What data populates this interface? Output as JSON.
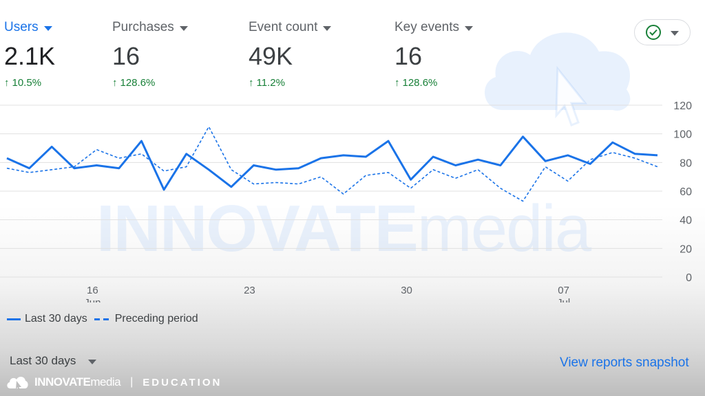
{
  "metrics": [
    {
      "label": "Users",
      "value": "2.1K",
      "change": "10.5%",
      "active": true
    },
    {
      "label": "Purchases",
      "value": "16",
      "change": "128.6%",
      "active": false
    },
    {
      "label": "Event count",
      "value": "49K",
      "change": "11.2%",
      "active": false
    },
    {
      "label": "Key events",
      "value": "16",
      "change": "128.6%",
      "active": false
    }
  ],
  "status_icon": "check-circle-icon",
  "colors": {
    "accent": "#1a73e8",
    "positive": "#188038"
  },
  "chart_data": {
    "type": "line",
    "y_ticks": [
      "120",
      "100",
      "80",
      "60",
      "40",
      "20",
      "0"
    ],
    "ylim": [
      0,
      120
    ],
    "x_ticks": [
      {
        "day": "16",
        "month": "Jun"
      },
      {
        "day": "23",
        "month": ""
      },
      {
        "day": "30",
        "month": ""
      },
      {
        "day": "07",
        "month": "Jul"
      }
    ],
    "series": [
      {
        "name": "Last 30 days",
        "style": "solid",
        "values": [
          83,
          76,
          91,
          76,
          78,
          76,
          95,
          61,
          86,
          75,
          63,
          78,
          75,
          76,
          83,
          85,
          84,
          95,
          68,
          84,
          78,
          82,
          78,
          98,
          81,
          85,
          79,
          94,
          86,
          85
        ]
      },
      {
        "name": "Preceding period",
        "style": "dashed",
        "values": [
          76,
          73,
          75,
          77,
          89,
          83,
          86,
          74,
          77,
          105,
          75,
          65,
          66,
          65,
          70,
          58,
          71,
          73,
          62,
          75,
          69,
          75,
          62,
          53,
          77,
          67,
          82,
          87,
          83,
          77
        ]
      }
    ]
  },
  "legend": {
    "current": "Last 30 days",
    "previous": "Preceding period"
  },
  "date_range": {
    "label": "Last 30 days"
  },
  "link": {
    "label": "View reports snapshot"
  },
  "watermark": {
    "bold": "INNOVATE",
    "light": "media"
  },
  "footer": {
    "brand_bold": "INNOVATE",
    "brand_light": "media",
    "separator": "|",
    "tagline": "EDUCATION"
  }
}
